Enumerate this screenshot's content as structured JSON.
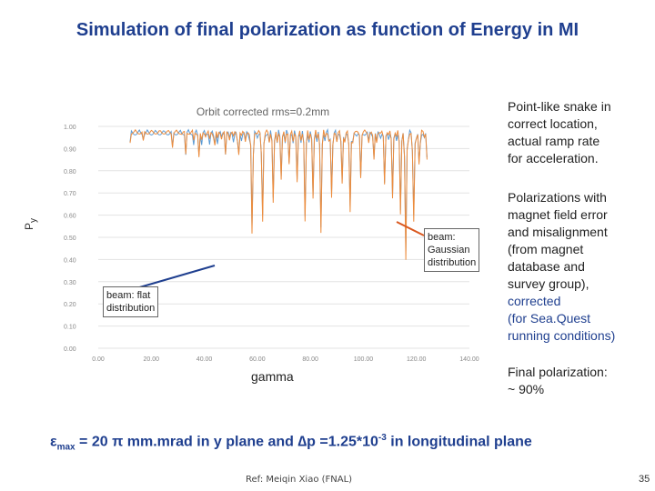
{
  "slide_title": "Simulation of final polarization as function of Energy in MI",
  "y_axis_label_main": "P",
  "y_axis_label_sub": "y",
  "gamma_label": "gamma",
  "callout_gaussian": [
    "beam:",
    "Gaussian",
    "distribution"
  ],
  "callout_flat": [
    "beam: flat",
    "distribution"
  ],
  "right_text": {
    "p1": [
      "Point-like snake in",
      "correct location,",
      "actual ramp rate",
      "for acceleration."
    ],
    "p2": [
      "Polarizations with",
      "magnet field error",
      "and misalignment",
      "(from magnet",
      "database and",
      "survey group),"
    ],
    "p2_corrected": [
      "corrected",
      "(for Sea.Quest",
      "running conditions)"
    ],
    "p3": [
      "Final polarization:",
      "~ 90%"
    ]
  },
  "bottom_equation": {
    "epsilon": "ε",
    "sub_max": "max",
    "part1": " = 20 π mm.mrad  in y plane and ∆p =1.25*10",
    "sup": "-3",
    "part2": " in longitudinal plane"
  },
  "reference": "Ref: Meiqin Xiao (FNAL)",
  "page_number": "35",
  "chart_data": {
    "type": "line",
    "title": "Orbit corrected rms=0.2mm",
    "xlabel": "gamma",
    "ylabel": "Py",
    "xlim": [
      0,
      140
    ],
    "ylim": [
      0,
      1
    ],
    "x_ticks": [
      "0.00",
      "20.00",
      "40.00",
      "60.00",
      "80.00",
      "100.00",
      "120.00",
      "140.00"
    ],
    "y_ticks": [
      "0.00",
      "0.10",
      "0.20",
      "0.30",
      "0.40",
      "0.50",
      "0.60",
      "0.70",
      "0.80",
      "0.90",
      "1.00"
    ],
    "grid": true,
    "colors": {
      "blue": "#5b9bd5",
      "orange": "#ed8c3c"
    },
    "dips": [
      {
        "x": 12,
        "y": 0.93
      },
      {
        "x": 17,
        "y": 0.94
      },
      {
        "x": 28,
        "y": 0.91
      },
      {
        "x": 33,
        "y": 0.92
      },
      {
        "x": 38,
        "y": 0.87
      },
      {
        "x": 41,
        "y": 0.97
      },
      {
        "x": 44,
        "y": 0.92
      },
      {
        "x": 48,
        "y": 0.91
      },
      {
        "x": 53,
        "y": 0.88
      },
      {
        "x": 58,
        "y": 0.55
      },
      {
        "x": 62,
        "y": 0.6
      },
      {
        "x": 66,
        "y": 0.68
      },
      {
        "x": 69,
        "y": 0.78
      },
      {
        "x": 72,
        "y": 0.85
      },
      {
        "x": 75,
        "y": 0.78
      },
      {
        "x": 78,
        "y": 0.62
      },
      {
        "x": 81,
        "y": 0.72
      },
      {
        "x": 84,
        "y": 0.58
      },
      {
        "x": 88,
        "y": 0.7
      },
      {
        "x": 92,
        "y": 0.76
      },
      {
        "x": 95,
        "y": 0.64
      },
      {
        "x": 99,
        "y": 0.82
      },
      {
        "x": 104,
        "y": 0.86
      },
      {
        "x": 108,
        "y": 0.79
      },
      {
        "x": 111,
        "y": 0.73
      },
      {
        "x": 114,
        "y": 0.66
      },
      {
        "x": 116,
        "y": 0.44
      },
      {
        "x": 119,
        "y": 0.6
      },
      {
        "x": 121,
        "y": 0.84
      },
      {
        "x": 124,
        "y": 0.86
      },
      {
        "x": 127,
        "y": 0.8
      }
    ]
  }
}
